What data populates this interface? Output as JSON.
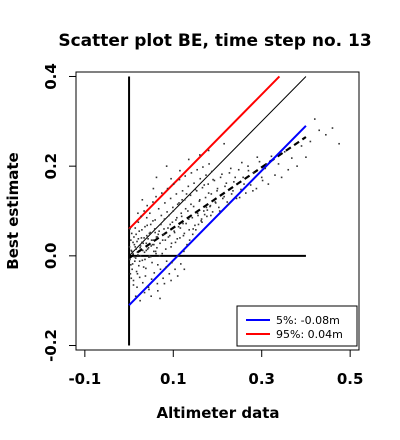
{
  "chart_data": {
    "type": "scatter",
    "title": "Scatter plot BE, time step no. 13",
    "xlabel": "Altimeter data",
    "ylabel": "Best estimate",
    "xlim": [
      -0.12,
      0.52
    ],
    "ylim": [
      -0.21,
      0.41
    ],
    "x_ticks": [
      -0.1,
      0.1,
      0.3,
      0.5
    ],
    "x_tick_labels": [
      "-0.1",
      "0.1",
      "0.3",
      "0.5"
    ],
    "y_ticks": [
      -0.2,
      0.0,
      0.2,
      0.4
    ],
    "y_tick_labels": [
      "-0.2",
      "0.0",
      "0.2",
      "0.4"
    ],
    "grid": false,
    "legend_position": "bottom-right",
    "colors": {
      "lower": "#0000ff",
      "upper": "#ff0000",
      "points": "#333333",
      "lines": "#000000"
    },
    "reference_lines": [
      {
        "kind": "identity",
        "style": "solid-thin",
        "x": [
          0.0,
          0.4
        ],
        "y": [
          0.0,
          0.4
        ]
      },
      {
        "kind": "regression",
        "style": "dashed",
        "x": [
          0.0,
          0.4
        ],
        "y": [
          -0.005,
          0.265
        ]
      },
      {
        "kind": "vertical-axis",
        "style": "solid",
        "x": [
          0.0,
          0.0
        ],
        "y": [
          -0.2,
          0.4
        ]
      },
      {
        "kind": "horizontal-axis",
        "style": "solid",
        "x": [
          0.0,
          0.4
        ],
        "y": [
          0.0,
          0.0
        ]
      }
    ],
    "series": [
      {
        "name": "5%: -0.08m",
        "color": "#0000ff",
        "x": [
          0.0,
          0.4
        ],
        "y": [
          -0.11,
          0.29
        ]
      },
      {
        "name": "95%:  0.04m",
        "color": "#ff0000",
        "x": [
          0.0,
          0.34
        ],
        "y": [
          0.06,
          0.4
        ]
      }
    ],
    "points": [
      [
        0.005,
        0.012
      ],
      [
        0.008,
        -0.018
      ],
      [
        0.012,
        0.025
      ],
      [
        0.015,
        -0.005
      ],
      [
        0.018,
        0.032
      ],
      [
        0.02,
        0.002
      ],
      [
        0.022,
        -0.022
      ],
      [
        0.025,
        0.018
      ],
      [
        0.028,
        0.04
      ],
      [
        0.03,
        -0.01
      ],
      [
        0.032,
        0.028
      ],
      [
        0.035,
        0.008
      ],
      [
        0.038,
        -0.028
      ],
      [
        0.04,
        0.045
      ],
      [
        0.042,
        0.015
      ],
      [
        0.045,
        -0.003
      ],
      [
        0.048,
        0.052
      ],
      [
        0.05,
        0.022
      ],
      [
        0.052,
        -0.015
      ],
      [
        0.055,
        0.035
      ],
      [
        0.058,
        0.06
      ],
      [
        0.06,
        0.01
      ],
      [
        0.062,
        0.042
      ],
      [
        0.065,
        -0.02
      ],
      [
        0.068,
        0.055
      ],
      [
        0.07,
        0.028
      ],
      [
        0.072,
        0.07
      ],
      [
        0.075,
        0.005
      ],
      [
        0.078,
        0.048
      ],
      [
        0.08,
        0.082
      ],
      [
        0.082,
        0.035
      ],
      [
        0.085,
        -0.012
      ],
      [
        0.088,
        0.062
      ],
      [
        0.09,
        0.09
      ],
      [
        0.092,
        0.045
      ],
      [
        0.095,
        0.02
      ],
      [
        0.098,
        0.075
      ],
      [
        0.1,
        0.1
      ],
      [
        0.102,
        0.055
      ],
      [
        0.105,
        0.03
      ],
      [
        0.108,
        0.085
      ],
      [
        0.11,
        0.115
      ],
      [
        0.112,
        0.065
      ],
      [
        0.115,
        0.04
      ],
      [
        0.118,
        0.095
      ],
      [
        0.12,
        0.125
      ],
      [
        0.122,
        0.072
      ],
      [
        0.125,
        0.05
      ],
      [
        0.128,
        0.105
      ],
      [
        0.13,
        0.138
      ],
      [
        0.135,
        0.082
      ],
      [
        0.14,
        0.115
      ],
      [
        0.145,
        0.06
      ],
      [
        0.15,
        0.148
      ],
      [
        0.155,
        0.095
      ],
      [
        0.16,
        0.125
      ],
      [
        0.165,
        0.075
      ],
      [
        0.17,
        0.158
      ],
      [
        0.175,
        0.108
      ],
      [
        0.18,
        0.14
      ],
      [
        0.185,
        0.09
      ],
      [
        0.19,
        0.17
      ],
      [
        0.195,
        0.12
      ],
      [
        0.2,
        0.15
      ],
      [
        0.205,
        0.1
      ],
      [
        0.21,
        0.182
      ],
      [
        0.215,
        0.132
      ],
      [
        0.22,
        0.162
      ],
      [
        0.225,
        0.115
      ],
      [
        0.23,
        0.195
      ],
      [
        0.235,
        0.145
      ],
      [
        0.24,
        0.175
      ],
      [
        0.25,
        0.13
      ],
      [
        0.255,
        0.208
      ],
      [
        0.26,
        0.16
      ],
      [
        0.27,
        0.19
      ],
      [
        0.28,
        0.145
      ],
      [
        0.29,
        0.22
      ],
      [
        0.3,
        0.175
      ],
      [
        0.31,
        0.205
      ],
      [
        0.003,
        -0.04
      ],
      [
        0.006,
        0.05
      ],
      [
        0.01,
        -0.055
      ],
      [
        0.014,
        0.062
      ],
      [
        0.017,
        -0.035
      ],
      [
        0.021,
        0.075
      ],
      [
        0.024,
        -0.048
      ],
      [
        0.027,
        0.088
      ],
      [
        0.031,
        -0.06
      ],
      [
        0.034,
        0.1
      ],
      [
        0.037,
        -0.045
      ],
      [
        0.041,
        0.112
      ],
      [
        0.044,
        -0.07
      ],
      [
        0.047,
        0.095
      ],
      [
        0.051,
        -0.052
      ],
      [
        0.054,
        0.12
      ],
      [
        0.057,
        -0.038
      ],
      [
        0.061,
        0.132
      ],
      [
        0.064,
        -0.062
      ],
      [
        0.067,
        0.105
      ],
      [
        0.071,
        -0.03
      ],
      [
        0.074,
        0.14
      ],
      [
        0.077,
        -0.05
      ],
      [
        0.081,
        0.118
      ],
      [
        0.084,
        -0.025
      ],
      [
        0.087,
        0.15
      ],
      [
        0.091,
        -0.04
      ],
      [
        0.094,
        0.128
      ],
      [
        0.097,
        -0.015
      ],
      [
        0.101,
        0.16
      ],
      [
        0.104,
        -0.03
      ],
      [
        0.107,
        0.138
      ],
      [
        0.111,
        0.0
      ],
      [
        0.114,
        0.17
      ],
      [
        0.117,
        -0.018
      ],
      [
        0.121,
        0.145
      ],
      [
        0.124,
        0.01
      ],
      [
        0.127,
        0.178
      ],
      [
        0.131,
        0.025
      ],
      [
        0.134,
        0.155
      ],
      [
        0.137,
        0.035
      ],
      [
        0.141,
        0.185
      ],
      [
        0.144,
        0.048
      ],
      [
        0.147,
        0.162
      ],
      [
        0.151,
        0.058
      ],
      [
        0.154,
        0.192
      ],
      [
        0.157,
        0.07
      ],
      [
        0.161,
        0.172
      ],
      [
        0.164,
        0.082
      ],
      [
        0.167,
        0.198
      ],
      [
        0.171,
        0.092
      ],
      [
        0.174,
        0.18
      ],
      [
        0.177,
        0.102
      ],
      [
        0.181,
        0.205
      ],
      [
        0.184,
        0.112
      ],
      [
        0.187,
        0.188
      ],
      [
        0.001,
        0.02
      ],
      [
        0.002,
        -0.008
      ],
      [
        0.004,
        0.035
      ],
      [
        0.007,
        -0.03
      ],
      [
        0.009,
        0.005
      ],
      [
        0.011,
        0.042
      ],
      [
        0.013,
        -0.012
      ],
      [
        0.016,
        0.015
      ],
      [
        0.019,
        -0.04
      ],
      [
        0.023,
        0.055
      ],
      [
        0.026,
        0.0
      ],
      [
        0.029,
        0.03
      ],
      [
        0.033,
        -0.025
      ],
      [
        0.036,
        0.065
      ],
      [
        0.039,
        0.012
      ],
      [
        0.043,
        0.038
      ],
      [
        0.046,
        0.0
      ],
      [
        0.049,
        0.07
      ],
      [
        0.053,
        0.025
      ],
      [
        0.056,
        0.01
      ],
      [
        0.059,
        0.08
      ],
      [
        0.063,
        0.018
      ],
      [
        0.066,
        0.048
      ],
      [
        0.069,
        0.0
      ],
      [
        0.073,
        0.09
      ],
      [
        0.076,
        0.035
      ],
      [
        0.079,
        0.06
      ],
      [
        0.083,
        0.015
      ],
      [
        0.086,
        0.098
      ],
      [
        0.089,
        0.042
      ],
      [
        0.093,
        0.07
      ],
      [
        0.096,
        0.028
      ],
      [
        0.099,
        0.108
      ],
      [
        0.103,
        0.052
      ],
      [
        0.106,
        0.08
      ],
      [
        0.109,
        0.038
      ],
      [
        0.113,
        0.118
      ],
      [
        0.116,
        0.062
      ],
      [
        0.119,
        0.088
      ],
      [
        0.123,
        0.045
      ],
      [
        0.126,
        0.125
      ],
      [
        0.129,
        0.072
      ],
      [
        0.133,
        0.1
      ],
      [
        0.136,
        0.058
      ],
      [
        0.139,
        0.135
      ],
      [
        0.143,
        0.085
      ],
      [
        0.146,
        0.11
      ],
      [
        0.149,
        0.068
      ],
      [
        0.153,
        0.145
      ],
      [
        0.156,
        0.09
      ],
      [
        0.159,
        0.122
      ],
      [
        0.163,
        0.078
      ],
      [
        0.166,
        0.152
      ],
      [
        0.169,
        0.1
      ],
      [
        0.173,
        0.13
      ],
      [
        0.176,
        0.088
      ],
      [
        0.179,
        0.16
      ],
      [
        0.183,
        0.11
      ],
      [
        0.186,
        0.138
      ],
      [
        0.189,
        0.098
      ],
      [
        0.193,
        0.168
      ],
      [
        0.196,
        0.118
      ],
      [
        0.199,
        0.145
      ],
      [
        0.203,
        0.108
      ],
      [
        0.207,
        0.175
      ],
      [
        0.212,
        0.128
      ],
      [
        0.217,
        0.155
      ],
      [
        0.222,
        0.12
      ],
      [
        0.227,
        0.185
      ],
      [
        0.232,
        0.138
      ],
      [
        0.237,
        0.165
      ],
      [
        0.243,
        0.128
      ],
      [
        0.248,
        0.192
      ],
      [
        0.253,
        0.148
      ],
      [
        0.258,
        0.175
      ],
      [
        0.264,
        0.14
      ],
      [
        0.269,
        0.2
      ],
      [
        0.275,
        0.158
      ],
      [
        0.282,
        0.185
      ],
      [
        0.288,
        0.15
      ],
      [
        0.295,
        0.21
      ],
      [
        0.302,
        0.168
      ],
      [
        0.308,
        0.195
      ],
      [
        0.315,
        0.16
      ],
      [
        0.322,
        0.222
      ],
      [
        0.33,
        0.18
      ],
      [
        0.338,
        0.205
      ],
      [
        0.345,
        0.175
      ],
      [
        0.352,
        0.232
      ],
      [
        0.36,
        0.192
      ],
      [
        0.368,
        0.218
      ],
      [
        0.38,
        0.2
      ],
      [
        0.39,
        0.245
      ],
      [
        0.4,
        0.22
      ],
      [
        0.41,
        0.255
      ],
      [
        0.42,
        0.305
      ],
      [
        0.43,
        0.28
      ],
      [
        0.445,
        0.27
      ],
      [
        0.46,
        0.285
      ],
      [
        0.475,
        0.25
      ],
      [
        0.062,
        0.175
      ],
      [
        0.085,
        0.2
      ],
      [
        0.115,
        0.19
      ],
      [
        0.135,
        0.215
      ],
      [
        0.16,
        0.225
      ],
      [
        0.18,
        0.235
      ],
      [
        0.055,
        0.15
      ],
      [
        0.03,
        0.125
      ],
      [
        0.02,
        0.095
      ],
      [
        0.04,
        0.085
      ],
      [
        0.095,
        0.172
      ],
      [
        0.215,
        0.25
      ],
      [
        0.018,
        -0.07
      ],
      [
        0.035,
        -0.082
      ],
      [
        0.05,
        -0.09
      ],
      [
        0.065,
        -0.078
      ],
      [
        0.08,
        -0.062
      ],
      [
        0.095,
        -0.055
      ],
      [
        0.11,
        -0.045
      ],
      [
        0.125,
        -0.03
      ],
      [
        0.005,
        -0.05
      ],
      [
        0.01,
        -0.065
      ],
      [
        0.015,
        -0.09
      ],
      [
        0.025,
        -0.1
      ],
      [
        0.045,
        -0.075
      ],
      [
        0.07,
        -0.095
      ],
      [
        0.002,
        0.06
      ],
      [
        0.004,
        -0.02
      ],
      [
        0.006,
        0.01
      ],
      [
        0.009,
        0.03
      ],
      [
        0.012,
        -0.002
      ],
      [
        0.014,
        0.02
      ],
      [
        0.016,
        0.048
      ],
      [
        0.019,
        0.008
      ],
      [
        0.021,
        0.038
      ],
      [
        0.024,
        -0.012
      ],
      [
        0.026,
        0.022
      ],
      [
        0.029,
        0.058
      ],
      [
        0.031,
        0.012
      ],
      [
        0.034,
        0.04
      ],
      [
        0.036,
        -0.008
      ],
      [
        0.039,
        0.028
      ],
      [
        0.041,
        0.068
      ],
      [
        0.044,
        0.018
      ],
      [
        0.046,
        0.05
      ],
      [
        0.049,
        -0.002
      ],
      [
        0.051,
        0.035
      ],
      [
        0.054,
        0.078
      ],
      [
        0.056,
        0.025
      ],
      [
        0.059,
        0.052
      ],
      [
        0.061,
        0.005
      ],
      [
        0.064,
        0.042
      ]
    ],
    "legend": [
      {
        "label": "5%: -0.08m",
        "color": "#0000ff"
      },
      {
        "label": "95%:  0.04m",
        "color": "#ff0000"
      }
    ]
  }
}
